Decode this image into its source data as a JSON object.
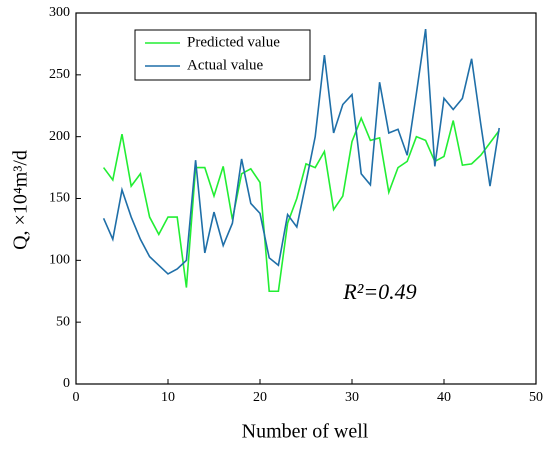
{
  "chart_data": {
    "type": "line",
    "x": [
      3,
      4,
      5,
      6,
      7,
      8,
      9,
      10,
      11,
      12,
      13,
      14,
      15,
      16,
      17,
      18,
      19,
      20,
      21,
      22,
      23,
      24,
      25,
      26,
      27,
      28,
      29,
      30,
      31,
      32,
      33,
      34,
      35,
      36,
      37,
      38,
      39,
      40,
      41,
      42,
      43,
      44,
      45,
      46
    ],
    "series": [
      {
        "name": "Predicted value",
        "color": "#22ee33",
        "values": [
          175,
          165,
          202,
          160,
          170,
          135,
          121,
          135,
          135,
          78,
          175,
          175,
          152,
          176,
          133,
          170,
          174,
          163,
          75,
          75,
          130,
          150,
          178,
          175,
          188,
          141,
          152,
          196,
          215,
          197,
          199,
          155,
          175,
          180,
          200,
          197,
          180,
          184,
          213,
          177,
          178,
          185,
          195,
          205
        ]
      },
      {
        "name": "Actual value",
        "color": "#1f6fa8",
        "values": [
          134,
          117,
          157,
          135,
          117,
          103,
          96,
          89,
          93,
          100,
          181,
          106,
          139,
          112,
          130,
          182,
          146,
          138,
          102,
          96,
          137,
          127,
          163,
          200,
          266,
          203,
          226,
          234,
          170,
          161,
          244,
          203,
          206,
          185,
          235,
          287,
          176,
          231,
          222,
          231,
          263,
          210,
          160,
          207
        ]
      }
    ],
    "xlabel": "Number of well",
    "ylabel": "Q, ×10⁴m³/d",
    "annotation": "R²=0.49",
    "xlim": [
      0,
      50
    ],
    "xticks": [
      0,
      10,
      20,
      30,
      40,
      50
    ],
    "ylim": [
      0,
      300
    ],
    "yticks": [
      0,
      50,
      100,
      150,
      200,
      250,
      300
    ],
    "legend": "upper left"
  }
}
